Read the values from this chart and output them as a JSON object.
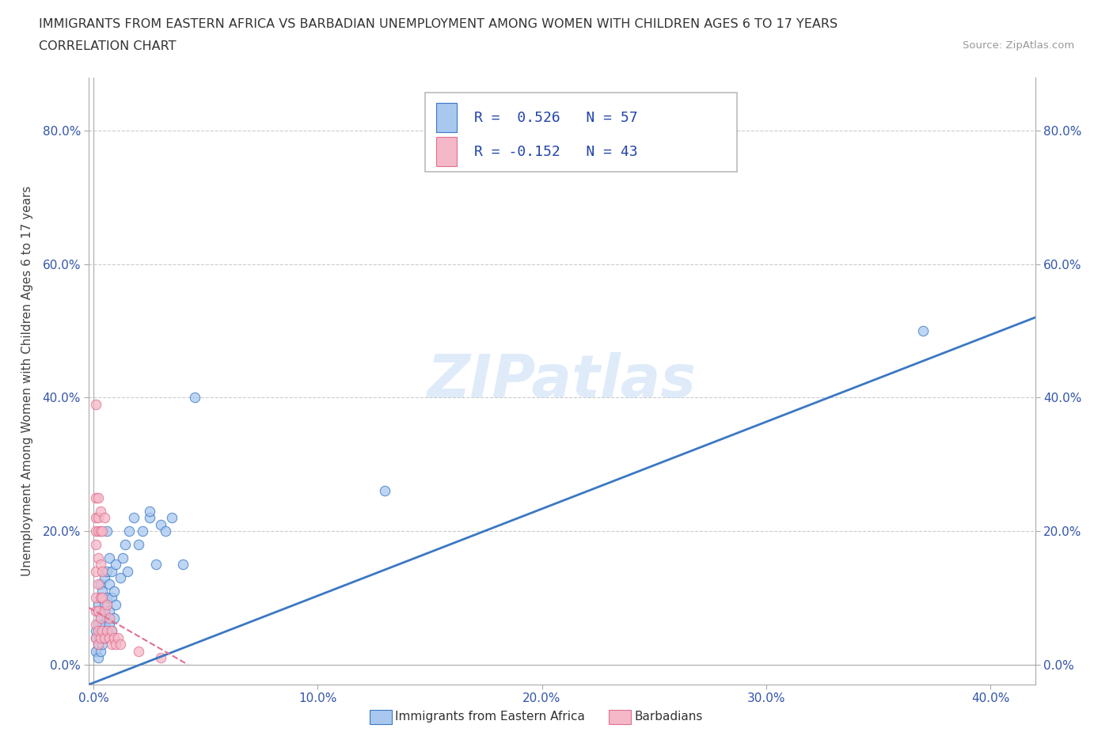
{
  "title_line1": "IMMIGRANTS FROM EASTERN AFRICA VS BARBADIAN UNEMPLOYMENT AMONG WOMEN WITH CHILDREN AGES 6 TO 17 YEARS",
  "title_line2": "CORRELATION CHART",
  "source_text": "Source: ZipAtlas.com",
  "ylabel": "Unemployment Among Women with Children Ages 6 to 17 years",
  "xlim": [
    -0.002,
    0.42
  ],
  "ylim": [
    -0.03,
    0.88
  ],
  "xtick_labels": [
    "0.0%",
    "10.0%",
    "20.0%",
    "30.0%",
    "40.0%"
  ],
  "xtick_vals": [
    0.0,
    0.1,
    0.2,
    0.3,
    0.4
  ],
  "ytick_labels": [
    "0.0%",
    "20.0%",
    "40.0%",
    "60.0%",
    "80.0%"
  ],
  "ytick_vals": [
    0.0,
    0.2,
    0.4,
    0.6,
    0.8
  ],
  "watermark": "ZIPatlas",
  "legend_r1_label": "R =  0.526   N = 57",
  "legend_r2_label": "R = -0.152   N = 43",
  "blue_color": "#A8C8F0",
  "pink_color": "#F5B8C8",
  "blue_line_color": "#3B78C3",
  "pink_line_color": "#E07090",
  "blue_scatter": [
    [
      0.001,
      0.02
    ],
    [
      0.001,
      0.04
    ],
    [
      0.001,
      0.05
    ],
    [
      0.002,
      0.01
    ],
    [
      0.002,
      0.03
    ],
    [
      0.002,
      0.06
    ],
    [
      0.002,
      0.08
    ],
    [
      0.002,
      0.09
    ],
    [
      0.003,
      0.02
    ],
    [
      0.003,
      0.04
    ],
    [
      0.003,
      0.05
    ],
    [
      0.003,
      0.07
    ],
    [
      0.003,
      0.1
    ],
    [
      0.003,
      0.12
    ],
    [
      0.004,
      0.03
    ],
    [
      0.004,
      0.05
    ],
    [
      0.004,
      0.06
    ],
    [
      0.004,
      0.08
    ],
    [
      0.004,
      0.11
    ],
    [
      0.005,
      0.04
    ],
    [
      0.005,
      0.06
    ],
    [
      0.005,
      0.09
    ],
    [
      0.005,
      0.13
    ],
    [
      0.006,
      0.05
    ],
    [
      0.006,
      0.07
    ],
    [
      0.006,
      0.1
    ],
    [
      0.006,
      0.14
    ],
    [
      0.006,
      0.2
    ],
    [
      0.007,
      0.06
    ],
    [
      0.007,
      0.08
    ],
    [
      0.007,
      0.12
    ],
    [
      0.007,
      0.16
    ],
    [
      0.008,
      0.05
    ],
    [
      0.008,
      0.1
    ],
    [
      0.008,
      0.14
    ],
    [
      0.009,
      0.07
    ],
    [
      0.009,
      0.11
    ],
    [
      0.01,
      0.09
    ],
    [
      0.01,
      0.15
    ],
    [
      0.012,
      0.13
    ],
    [
      0.013,
      0.16
    ],
    [
      0.014,
      0.18
    ],
    [
      0.015,
      0.14
    ],
    [
      0.016,
      0.2
    ],
    [
      0.018,
      0.22
    ],
    [
      0.02,
      0.18
    ],
    [
      0.022,
      0.2
    ],
    [
      0.025,
      0.22
    ],
    [
      0.025,
      0.23
    ],
    [
      0.028,
      0.15
    ],
    [
      0.03,
      0.21
    ],
    [
      0.032,
      0.2
    ],
    [
      0.035,
      0.22
    ],
    [
      0.04,
      0.15
    ],
    [
      0.045,
      0.4
    ],
    [
      0.13,
      0.26
    ],
    [
      0.37,
      0.5
    ]
  ],
  "pink_scatter": [
    [
      0.001,
      0.04
    ],
    [
      0.001,
      0.06
    ],
    [
      0.001,
      0.08
    ],
    [
      0.001,
      0.1
    ],
    [
      0.001,
      0.14
    ],
    [
      0.001,
      0.18
    ],
    [
      0.001,
      0.2
    ],
    [
      0.001,
      0.22
    ],
    [
      0.001,
      0.25
    ],
    [
      0.002,
      0.03
    ],
    [
      0.002,
      0.05
    ],
    [
      0.002,
      0.08
    ],
    [
      0.002,
      0.12
    ],
    [
      0.002,
      0.16
    ],
    [
      0.002,
      0.2
    ],
    [
      0.002,
      0.22
    ],
    [
      0.002,
      0.25
    ],
    [
      0.003,
      0.04
    ],
    [
      0.003,
      0.07
    ],
    [
      0.003,
      0.1
    ],
    [
      0.003,
      0.15
    ],
    [
      0.003,
      0.2
    ],
    [
      0.003,
      0.23
    ],
    [
      0.004,
      0.05
    ],
    [
      0.004,
      0.1
    ],
    [
      0.004,
      0.14
    ],
    [
      0.004,
      0.2
    ],
    [
      0.005,
      0.04
    ],
    [
      0.005,
      0.08
    ],
    [
      0.005,
      0.22
    ],
    [
      0.006,
      0.05
    ],
    [
      0.006,
      0.09
    ],
    [
      0.007,
      0.04
    ],
    [
      0.007,
      0.07
    ],
    [
      0.008,
      0.03
    ],
    [
      0.008,
      0.05
    ],
    [
      0.009,
      0.04
    ],
    [
      0.01,
      0.03
    ],
    [
      0.011,
      0.04
    ],
    [
      0.012,
      0.03
    ],
    [
      0.02,
      0.02
    ],
    [
      0.03,
      0.01
    ],
    [
      0.001,
      0.39
    ]
  ],
  "blue_trend_x": [
    -0.002,
    0.42
  ],
  "blue_trend_y": [
    -0.03,
    0.52
  ],
  "pink_trend_x": [
    -0.002,
    0.042
  ],
  "pink_trend_y": [
    0.085,
    0.0
  ]
}
